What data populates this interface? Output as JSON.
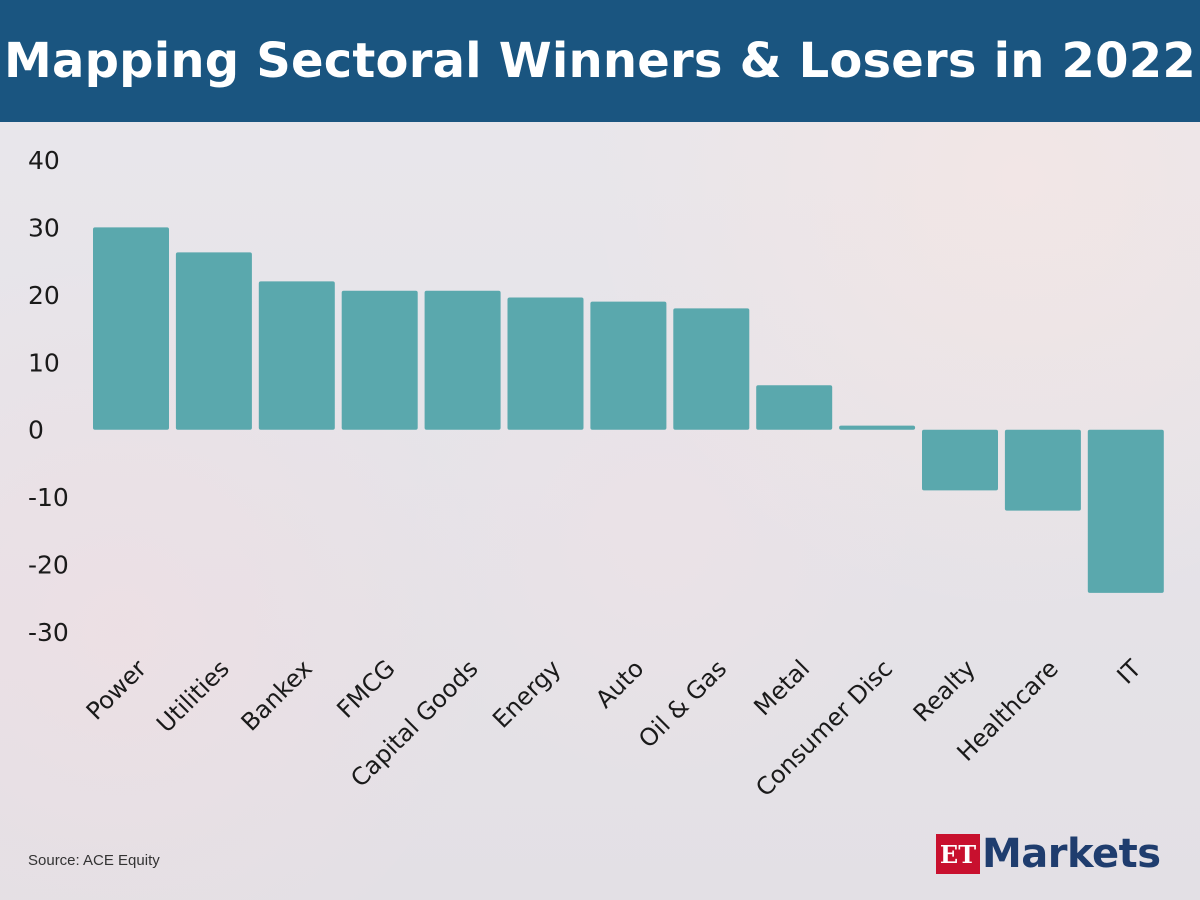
{
  "header": {
    "title": "Mapping Sectoral Winners & Losers in 2022"
  },
  "footer": {
    "source": "Source: ACE Equity"
  },
  "logo": {
    "et": "ET",
    "markets": "Markets",
    "brand_color": "#c8102e",
    "text_color": "#1f3d6e"
  },
  "colors": {
    "bar": "#5aa8ad",
    "header": "#1a5580"
  },
  "chart_data": {
    "type": "bar",
    "title": "Mapping Sectoral Winners & Losers in 2022",
    "xlabel": "",
    "ylabel": "",
    "categories": [
      "Power",
      "Utilities",
      "Bankex",
      "FMCG",
      "Capital Goods",
      "Energy",
      "Auto",
      "Oil & Gas",
      "Metal",
      "Consumer Disc",
      "Realty",
      "Healthcare",
      "IT"
    ],
    "values": [
      30,
      26.3,
      22,
      20.6,
      20.6,
      19.6,
      19,
      18,
      6.6,
      0.6,
      -9,
      -12,
      -24.2
    ],
    "ylim": [
      -30,
      40
    ],
    "yticks": [
      40,
      30,
      20,
      10,
      0,
      -10,
      -20,
      -30
    ],
    "grid": false,
    "legend": "none"
  }
}
